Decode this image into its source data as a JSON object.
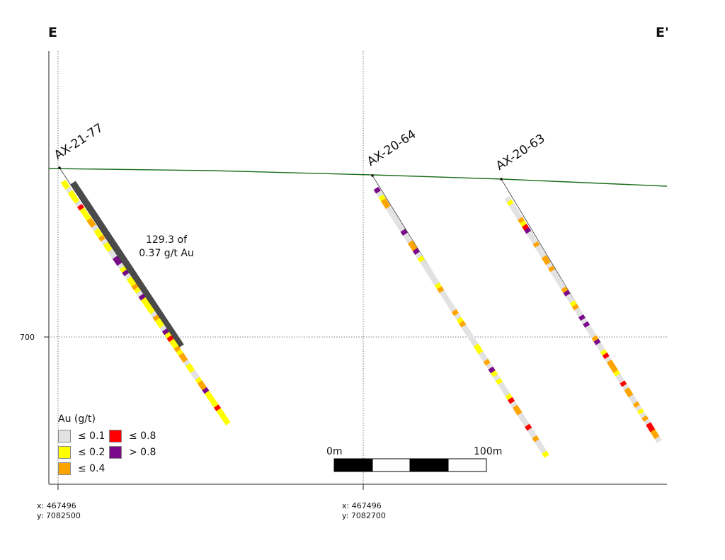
{
  "section": {
    "left_label": "E",
    "right_label": "E'"
  },
  "axis": {
    "elevation_tick": "700",
    "coords": [
      {
        "x": "x: 467496",
        "y": "y: 7082500"
      },
      {
        "x": "x: 467496",
        "y": "y: 7082700"
      }
    ]
  },
  "holes": [
    {
      "id": "AX-21-77"
    },
    {
      "id": "AX-20-64"
    },
    {
      "id": "AX-20-63"
    }
  ],
  "annotation": {
    "line1": "129.3 of",
    "line2": "0.37 g/t Au"
  },
  "legend": {
    "title": "Au (g/t)",
    "items": [
      {
        "label": "≤ 0.1",
        "color": "#e2e2e2"
      },
      {
        "label": "≤ 0.8",
        "color": "#ff0000"
      },
      {
        "label": "≤ 0.2",
        "color": "#ffff00"
      },
      {
        "label": "> 0.8",
        "color": "#7a0a8a"
      },
      {
        "label": "≤ 0.4",
        "color": "#ffa500"
      }
    ]
  },
  "scale_bar": {
    "start_label": "0m",
    "end_label": "100m"
  },
  "colors": {
    "topography": "#1b6e1b",
    "highlight": "#4a4a4a",
    "grey": "#e2e2e2",
    "yellow": "#ffff00",
    "orange": "#ffa500",
    "red": "#ff0000",
    "purple": "#7a0a8a"
  }
}
